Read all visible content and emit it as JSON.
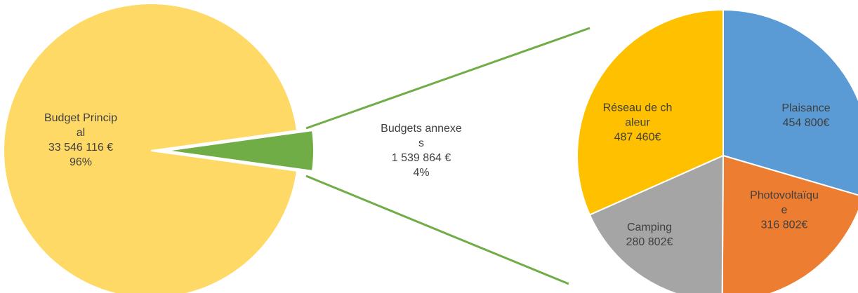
{
  "chart_data": [
    {
      "type": "pie",
      "categories": [
        "Budget Principal",
        "Budgets annexes"
      ],
      "values": [
        33546116,
        1539864
      ],
      "value_labels": [
        "33 546 116 €",
        "1 539 864 €"
      ],
      "percents": [
        96,
        4
      ],
      "percent_labels": [
        "96%",
        "4%"
      ],
      "colors": [
        "#ffd966",
        "#70ad47"
      ]
    },
    {
      "type": "pie",
      "categories": [
        "Plaisance",
        "Photovoltaïque",
        "Camping",
        "Réseau de chaleur"
      ],
      "values": [
        454800,
        316802,
        280802,
        487460
      ],
      "value_labels": [
        "454 800€",
        "316 802€",
        "280 802€",
        "487 460€"
      ],
      "colors": [
        "#5b9bd5",
        "#ed7d31",
        "#a5a5a5",
        "#ffc000"
      ]
    }
  ]
}
